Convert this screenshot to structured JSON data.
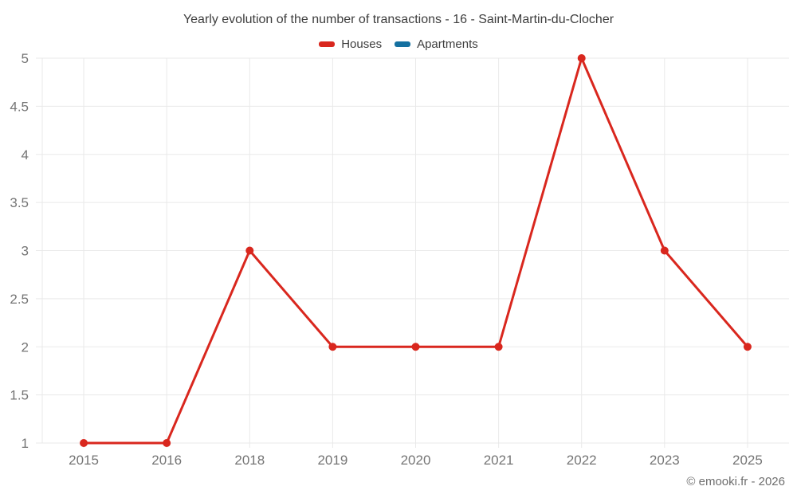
{
  "title": "Yearly evolution of the number of transactions - 16 - Saint-Martin-du-Clocher",
  "footer": "© emooki.fr - 2026",
  "colors": {
    "houses": "#d9271e",
    "apartments": "#1470a0",
    "grid": "#e9e9e9",
    "tick_label": "#757575",
    "title_text": "#3d3d3d",
    "footer_text": "#6e6e6e",
    "background": "#ffffff"
  },
  "chart_data": {
    "type": "line",
    "title": "Yearly evolution of the number of transactions - 16 - Saint-Martin-du-Clocher",
    "categories": [
      "2015",
      "2016",
      "2018",
      "2019",
      "2020",
      "2021",
      "2022",
      "2023",
      "2025"
    ],
    "series": [
      {
        "name": "Houses",
        "color": "#d9271e",
        "values": [
          1,
          1,
          3,
          2,
          2,
          2,
          5,
          3,
          2
        ]
      },
      {
        "name": "Apartments",
        "color": "#1470a0",
        "values": []
      }
    ],
    "xlabel": "",
    "ylabel": "",
    "ylim": [
      1,
      5
    ],
    "ytick_step": 0.5,
    "yticks": [
      1,
      1.5,
      2,
      2.5,
      3,
      3.5,
      4,
      4.5,
      5
    ],
    "grid": true,
    "legend_position": "top",
    "marker_radius": 5,
    "line_width": 3
  }
}
